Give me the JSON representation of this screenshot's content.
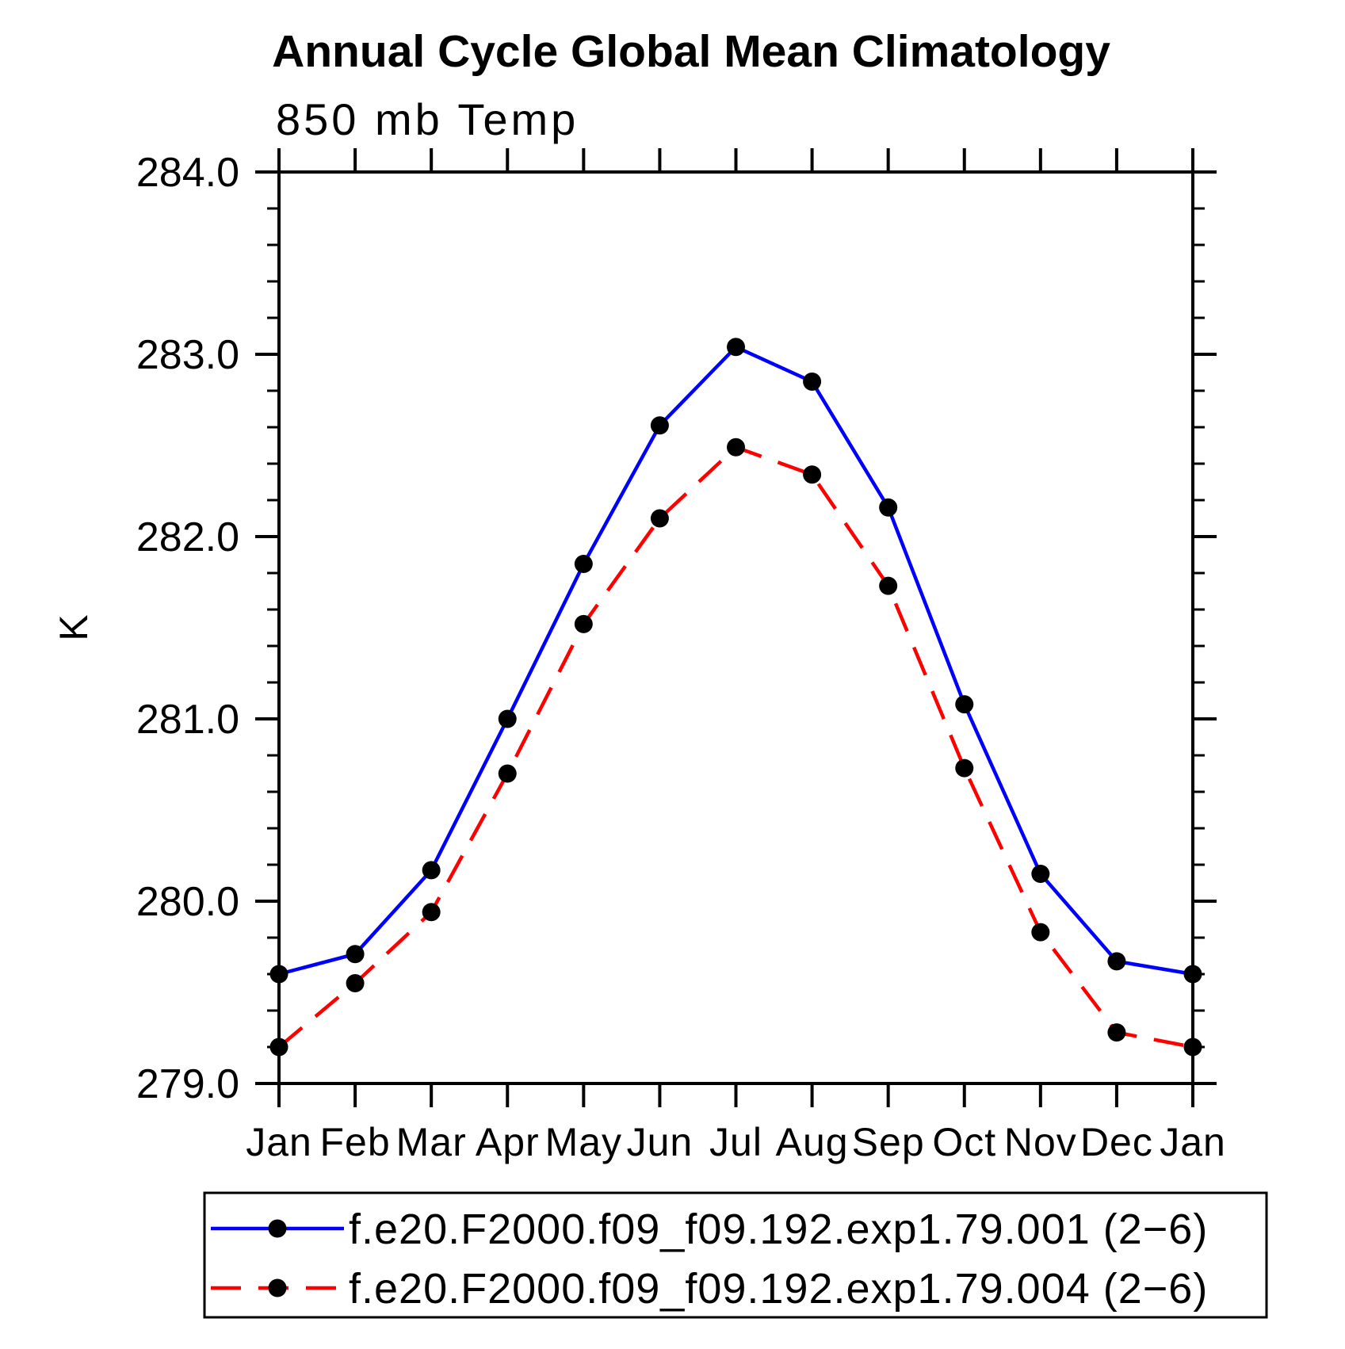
{
  "title": "Annual Cycle Global Mean Climatology",
  "subtitle": "850 mb Temp",
  "y_axis_unit_label": "K",
  "colors": {
    "axis": "#000000",
    "background": "#ffffff",
    "series1": "#0000ff",
    "series2": "#ff0000",
    "marker": "#000000"
  },
  "chart_data": {
    "type": "line",
    "title": "Annual Cycle Global Mean Climatology",
    "subtitle": "850 mb Temp",
    "xlabel": "",
    "ylabel": "K",
    "x_categories": [
      "Jan",
      "Feb",
      "Mar",
      "Apr",
      "May",
      "Jun",
      "Jul",
      "Aug",
      "Sep",
      "Oct",
      "Nov",
      "Dec",
      "Jan"
    ],
    "ylim": [
      279.0,
      284.0
    ],
    "y_major_tick_labels": [
      "279.0",
      "280.0",
      "281.0",
      "282.0",
      "283.0",
      "284.0"
    ],
    "y_major_ticks": [
      279.0,
      280.0,
      281.0,
      282.0,
      283.0,
      284.0
    ],
    "y_minor_tick_step": 0.2,
    "grid": false,
    "legend_position": "bottom",
    "series": [
      {
        "name": "f.e20.F2000.f09_f09.192.exp1.79.001 (2−6)",
        "color": "#0000ff",
        "line_style": "solid",
        "marker": "filled-circle",
        "marker_color": "#000000",
        "values": [
          279.6,
          279.71,
          280.17,
          281.0,
          281.85,
          282.61,
          283.04,
          282.85,
          282.16,
          281.08,
          280.15,
          279.67,
          279.6
        ]
      },
      {
        "name": "f.e20.F2000.f09_f09.192.exp1.79.004 (2−6)",
        "color": "#ff0000",
        "line_style": "dashed",
        "marker": "filled-circle",
        "marker_color": "#000000",
        "values": [
          279.2,
          279.55,
          279.94,
          280.7,
          281.52,
          282.1,
          282.49,
          282.34,
          281.73,
          280.73,
          279.83,
          279.28,
          279.2
        ]
      }
    ]
  }
}
